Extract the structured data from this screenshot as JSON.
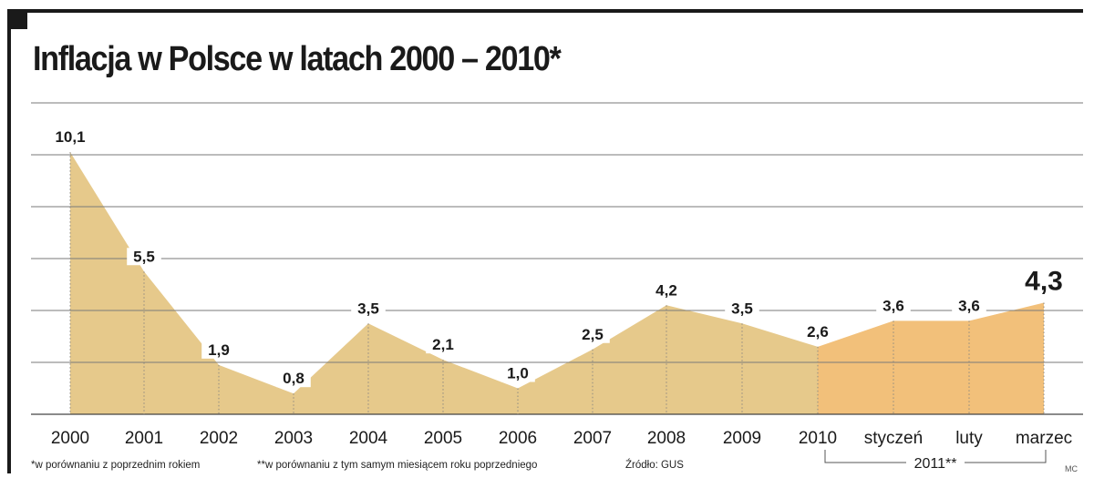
{
  "title": "Inflacja w Polsce w latach 2000 – 2010*",
  "chart_data": {
    "type": "area",
    "categories": [
      "2000",
      "2001",
      "2002",
      "2003",
      "2004",
      "2005",
      "2006",
      "2007",
      "2008",
      "2009",
      "2010",
      "styczeń",
      "luty",
      "marzec"
    ],
    "values": [
      10.1,
      5.5,
      1.9,
      0.8,
      3.5,
      2.1,
      1.0,
      2.5,
      4.2,
      3.5,
      2.6,
      3.6,
      3.6,
      4.3
    ],
    "value_labels": [
      "10,1",
      "5,5",
      "1,9",
      "0,8",
      "3,5",
      "2,1",
      "1,0",
      "2,5",
      "4,2",
      "3,5",
      "2,6",
      "3,6",
      "3,6",
      "4,3"
    ],
    "ylim": [
      0,
      12
    ],
    "grid": true,
    "group_label": "2011**",
    "group_categories": [
      "styczeń",
      "luty",
      "marzec"
    ],
    "colors": {
      "years": "#e6c98b",
      "months_2011": "#f2c07a",
      "grid": "#7a7a7a",
      "text": "#1a1a1a"
    }
  },
  "footnotes": {
    "note1": "*w porównaniu z poprzednim rokiem",
    "note2": "**w porównaniu z tym samym miesiącem roku poprzedniego",
    "source": "Źródło: GUS",
    "author": "MC"
  }
}
